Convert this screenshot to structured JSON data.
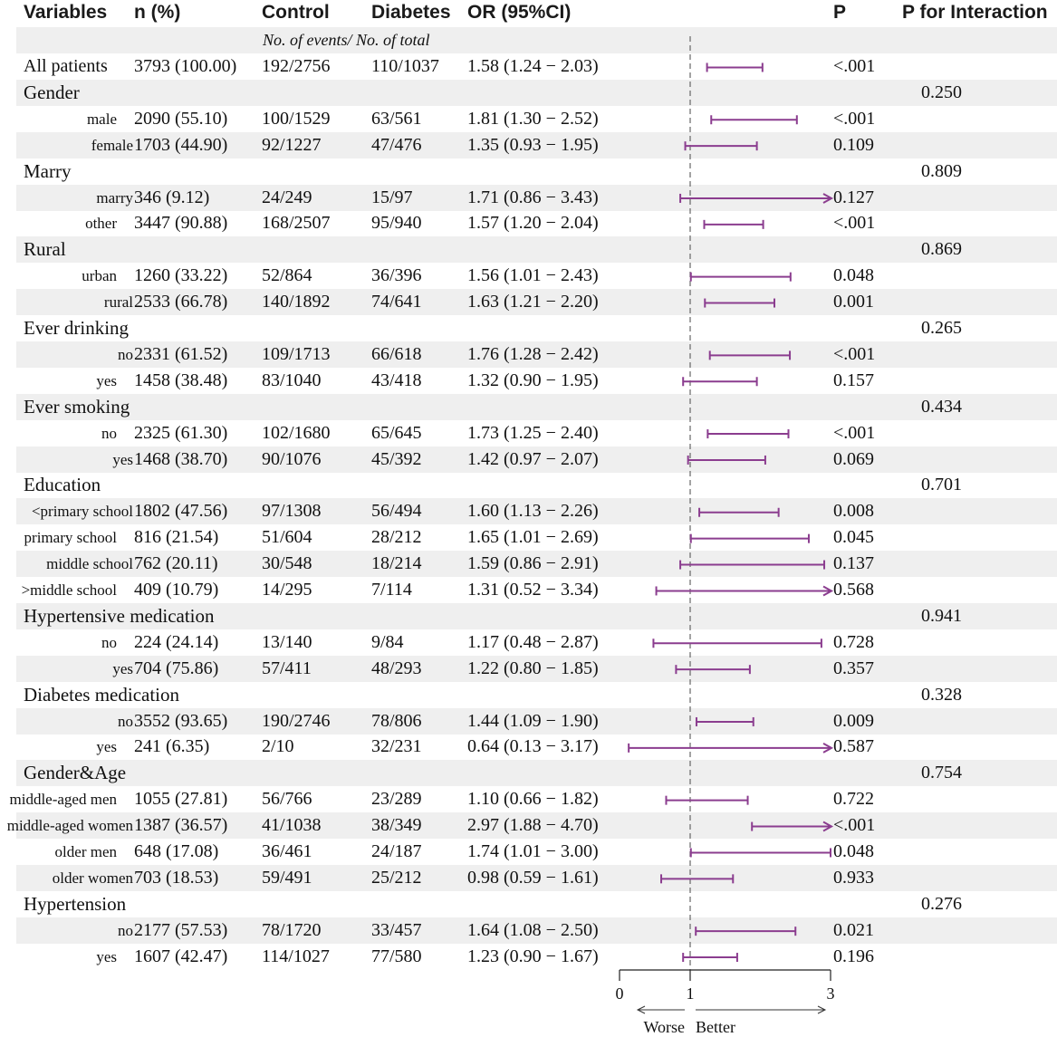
{
  "headers": {
    "variables": "Variables",
    "n": "n (%)",
    "control": "Control",
    "diabetes": "Diabetes",
    "or": "OR (95%CI)",
    "p": "P",
    "p_interaction": "P for Interaction"
  },
  "subheader": "No. of events/ No. of total",
  "colors": {
    "interval": "#8b3d8f",
    "refline": "#666666",
    "shade": "#efefef"
  },
  "chart_data": {
    "type": "forest",
    "reference_line": 1,
    "xlim": [
      0,
      3
    ],
    "x_ticks": [
      "0",
      "1",
      "3"
    ],
    "direction_left": "Worse",
    "direction_right": "Better",
    "rows": [
      {
        "kind": "item",
        "label": "All patients",
        "n": "3793 (100.00)",
        "control": "192/2756",
        "diabetes": "110/1037",
        "or_text": "1.58 (1.24 − 2.03)",
        "or": 1.58,
        "lo": 1.24,
        "hi": 2.03,
        "p": "<.001"
      },
      {
        "kind": "group",
        "label": "Gender",
        "p_interaction": "0.250"
      },
      {
        "kind": "sub",
        "label": "male",
        "n": "2090 (55.10)",
        "control": "100/1529",
        "diabetes": "63/561",
        "or_text": "1.81 (1.30 − 2.52)",
        "or": 1.81,
        "lo": 1.3,
        "hi": 2.52,
        "p": "<.001"
      },
      {
        "kind": "sub",
        "label": "female",
        "n": "1703 (44.90)",
        "control": "92/1227",
        "diabetes": "47/476",
        "or_text": "1.35 (0.93 − 1.95)",
        "or": 1.35,
        "lo": 0.93,
        "hi": 1.95,
        "p": "0.109"
      },
      {
        "kind": "group",
        "label": "Marry",
        "p_interaction": "0.809"
      },
      {
        "kind": "sub",
        "label": "marry",
        "n": "346 (9.12)",
        "control": "24/249",
        "diabetes": "15/97",
        "or_text": "1.71 (0.86 − 3.43)",
        "or": 1.71,
        "lo": 0.86,
        "hi": 3.43,
        "p": "0.127"
      },
      {
        "kind": "sub",
        "label": "other",
        "n": "3447 (90.88)",
        "control": "168/2507",
        "diabetes": "95/940",
        "or_text": "1.57 (1.20 − 2.04)",
        "or": 1.57,
        "lo": 1.2,
        "hi": 2.04,
        "p": "<.001"
      },
      {
        "kind": "group",
        "label": "Rural",
        "p_interaction": "0.869"
      },
      {
        "kind": "sub",
        "label": "urban",
        "n": "1260 (33.22)",
        "control": "52/864",
        "diabetes": "36/396",
        "or_text": "1.56 (1.01 − 2.43)",
        "or": 1.56,
        "lo": 1.01,
        "hi": 2.43,
        "p": "0.048"
      },
      {
        "kind": "sub",
        "label": "rural",
        "n": "2533 (66.78)",
        "control": "140/1892",
        "diabetes": "74/641",
        "or_text": "1.63 (1.21 − 2.20)",
        "or": 1.63,
        "lo": 1.21,
        "hi": 2.2,
        "p": "0.001"
      },
      {
        "kind": "group",
        "label": "Ever drinking",
        "p_interaction": "0.265"
      },
      {
        "kind": "sub",
        "label": "no",
        "n": "2331 (61.52)",
        "control": "109/1713",
        "diabetes": "66/618",
        "or_text": "1.76 (1.28 − 2.42)",
        "or": 1.76,
        "lo": 1.28,
        "hi": 2.42,
        "p": "<.001"
      },
      {
        "kind": "sub",
        "label": "yes",
        "n": "1458 (38.48)",
        "control": "83/1040",
        "diabetes": "43/418",
        "or_text": "1.32 (0.90 − 1.95)",
        "or": 1.32,
        "lo": 0.9,
        "hi": 1.95,
        "p": "0.157"
      },
      {
        "kind": "group",
        "label": "Ever smoking",
        "p_interaction": "0.434"
      },
      {
        "kind": "sub",
        "label": "no",
        "n": "2325 (61.30)",
        "control": "102/1680",
        "diabetes": "65/645",
        "or_text": "1.73 (1.25 − 2.40)",
        "or": 1.73,
        "lo": 1.25,
        "hi": 2.4,
        "p": "<.001"
      },
      {
        "kind": "sub",
        "label": "yes",
        "n": "1468 (38.70)",
        "control": "90/1076",
        "diabetes": "45/392",
        "or_text": "1.42 (0.97 − 2.07)",
        "or": 1.42,
        "lo": 0.97,
        "hi": 2.07,
        "p": "0.069"
      },
      {
        "kind": "group",
        "label": "Education",
        "p_interaction": "0.701"
      },
      {
        "kind": "sub",
        "label": "<primary school",
        "n": "1802 (47.56)",
        "control": "97/1308",
        "diabetes": "56/494",
        "or_text": "1.60 (1.13 − 2.26)",
        "or": 1.6,
        "lo": 1.13,
        "hi": 2.26,
        "p": "0.008"
      },
      {
        "kind": "sub",
        "label": "primary school",
        "n": "816 (21.54)",
        "control": "51/604",
        "diabetes": "28/212",
        "or_text": "1.65 (1.01 − 2.69)",
        "or": 1.65,
        "lo": 1.01,
        "hi": 2.69,
        "p": "0.045"
      },
      {
        "kind": "sub",
        "label": "middle school",
        "n": "762 (20.11)",
        "control": "30/548",
        "diabetes": "18/214",
        "or_text": "1.59 (0.86 − 2.91)",
        "or": 1.59,
        "lo": 0.86,
        "hi": 2.91,
        "p": "0.137"
      },
      {
        "kind": "sub",
        "label": ">middle school",
        "n": "409 (10.79)",
        "control": "14/295",
        "diabetes": "7/114",
        "or_text": "1.31 (0.52 − 3.34)",
        "or": 1.31,
        "lo": 0.52,
        "hi": 3.34,
        "p": "0.568"
      },
      {
        "kind": "group",
        "label": "Hypertensive medication",
        "p_interaction": "0.941"
      },
      {
        "kind": "sub",
        "label": "no",
        "n": "224 (24.14)",
        "control": "13/140",
        "diabetes": "9/84",
        "or_text": "1.17 (0.48 − 2.87)",
        "or": 1.17,
        "lo": 0.48,
        "hi": 2.87,
        "p": "0.728"
      },
      {
        "kind": "sub",
        "label": "yes",
        "n": "704 (75.86)",
        "control": "57/411",
        "diabetes": "48/293",
        "or_text": "1.22 (0.80 − 1.85)",
        "or": 1.22,
        "lo": 0.8,
        "hi": 1.85,
        "p": "0.357"
      },
      {
        "kind": "group",
        "label": "Diabetes medication",
        "p_interaction": "0.328"
      },
      {
        "kind": "sub",
        "label": "no",
        "n": "3552 (93.65)",
        "control": "190/2746",
        "diabetes": "78/806",
        "or_text": "1.44 (1.09 − 1.90)",
        "or": 1.44,
        "lo": 1.09,
        "hi": 1.9,
        "p": "0.009"
      },
      {
        "kind": "sub",
        "label": "yes",
        "n": "241 (6.35)",
        "control": "2/10",
        "diabetes": "32/231",
        "or_text": "0.64 (0.13 − 3.17)",
        "or": 0.64,
        "lo": 0.13,
        "hi": 3.17,
        "p": "0.587"
      },
      {
        "kind": "group",
        "label": "Gender&Age",
        "p_interaction": "0.754"
      },
      {
        "kind": "sub",
        "label": "middle-aged men",
        "n": "1055 (27.81)",
        "control": "56/766",
        "diabetes": "23/289",
        "or_text": "1.10 (0.66 − 1.82)",
        "or": 1.1,
        "lo": 0.66,
        "hi": 1.82,
        "p": "0.722"
      },
      {
        "kind": "sub",
        "label": "middle-aged women",
        "n": "1387 (36.57)",
        "control": "41/1038",
        "diabetes": "38/349",
        "or_text": "2.97 (1.88 − 4.70)",
        "or": 2.97,
        "lo": 1.88,
        "hi": 4.7,
        "p": "<.001"
      },
      {
        "kind": "sub",
        "label": "older men",
        "n": "648 (17.08)",
        "control": "36/461",
        "diabetes": "24/187",
        "or_text": "1.74 (1.01 − 3.00)",
        "or": 1.74,
        "lo": 1.01,
        "hi": 3.0,
        "p": "0.048"
      },
      {
        "kind": "sub",
        "label": "older women",
        "n": "703 (18.53)",
        "control": "59/491",
        "diabetes": "25/212",
        "or_text": "0.98 (0.59 − 1.61)",
        "or": 0.98,
        "lo": 0.59,
        "hi": 1.61,
        "p": "0.933"
      },
      {
        "kind": "group",
        "label": "Hypertension",
        "p_interaction": "0.276"
      },
      {
        "kind": "sub",
        "label": "no",
        "n": "2177 (57.53)",
        "control": "78/1720",
        "diabetes": "33/457",
        "or_text": "1.64 (1.08 − 2.50)",
        "or": 1.64,
        "lo": 1.08,
        "hi": 2.5,
        "p": "0.021"
      },
      {
        "kind": "sub",
        "label": "yes",
        "n": "1607 (42.47)",
        "control": "114/1027",
        "diabetes": "77/580",
        "or_text": "1.23 (0.90 − 1.67)",
        "or": 1.23,
        "lo": 0.9,
        "hi": 1.67,
        "p": "0.196"
      }
    ]
  }
}
